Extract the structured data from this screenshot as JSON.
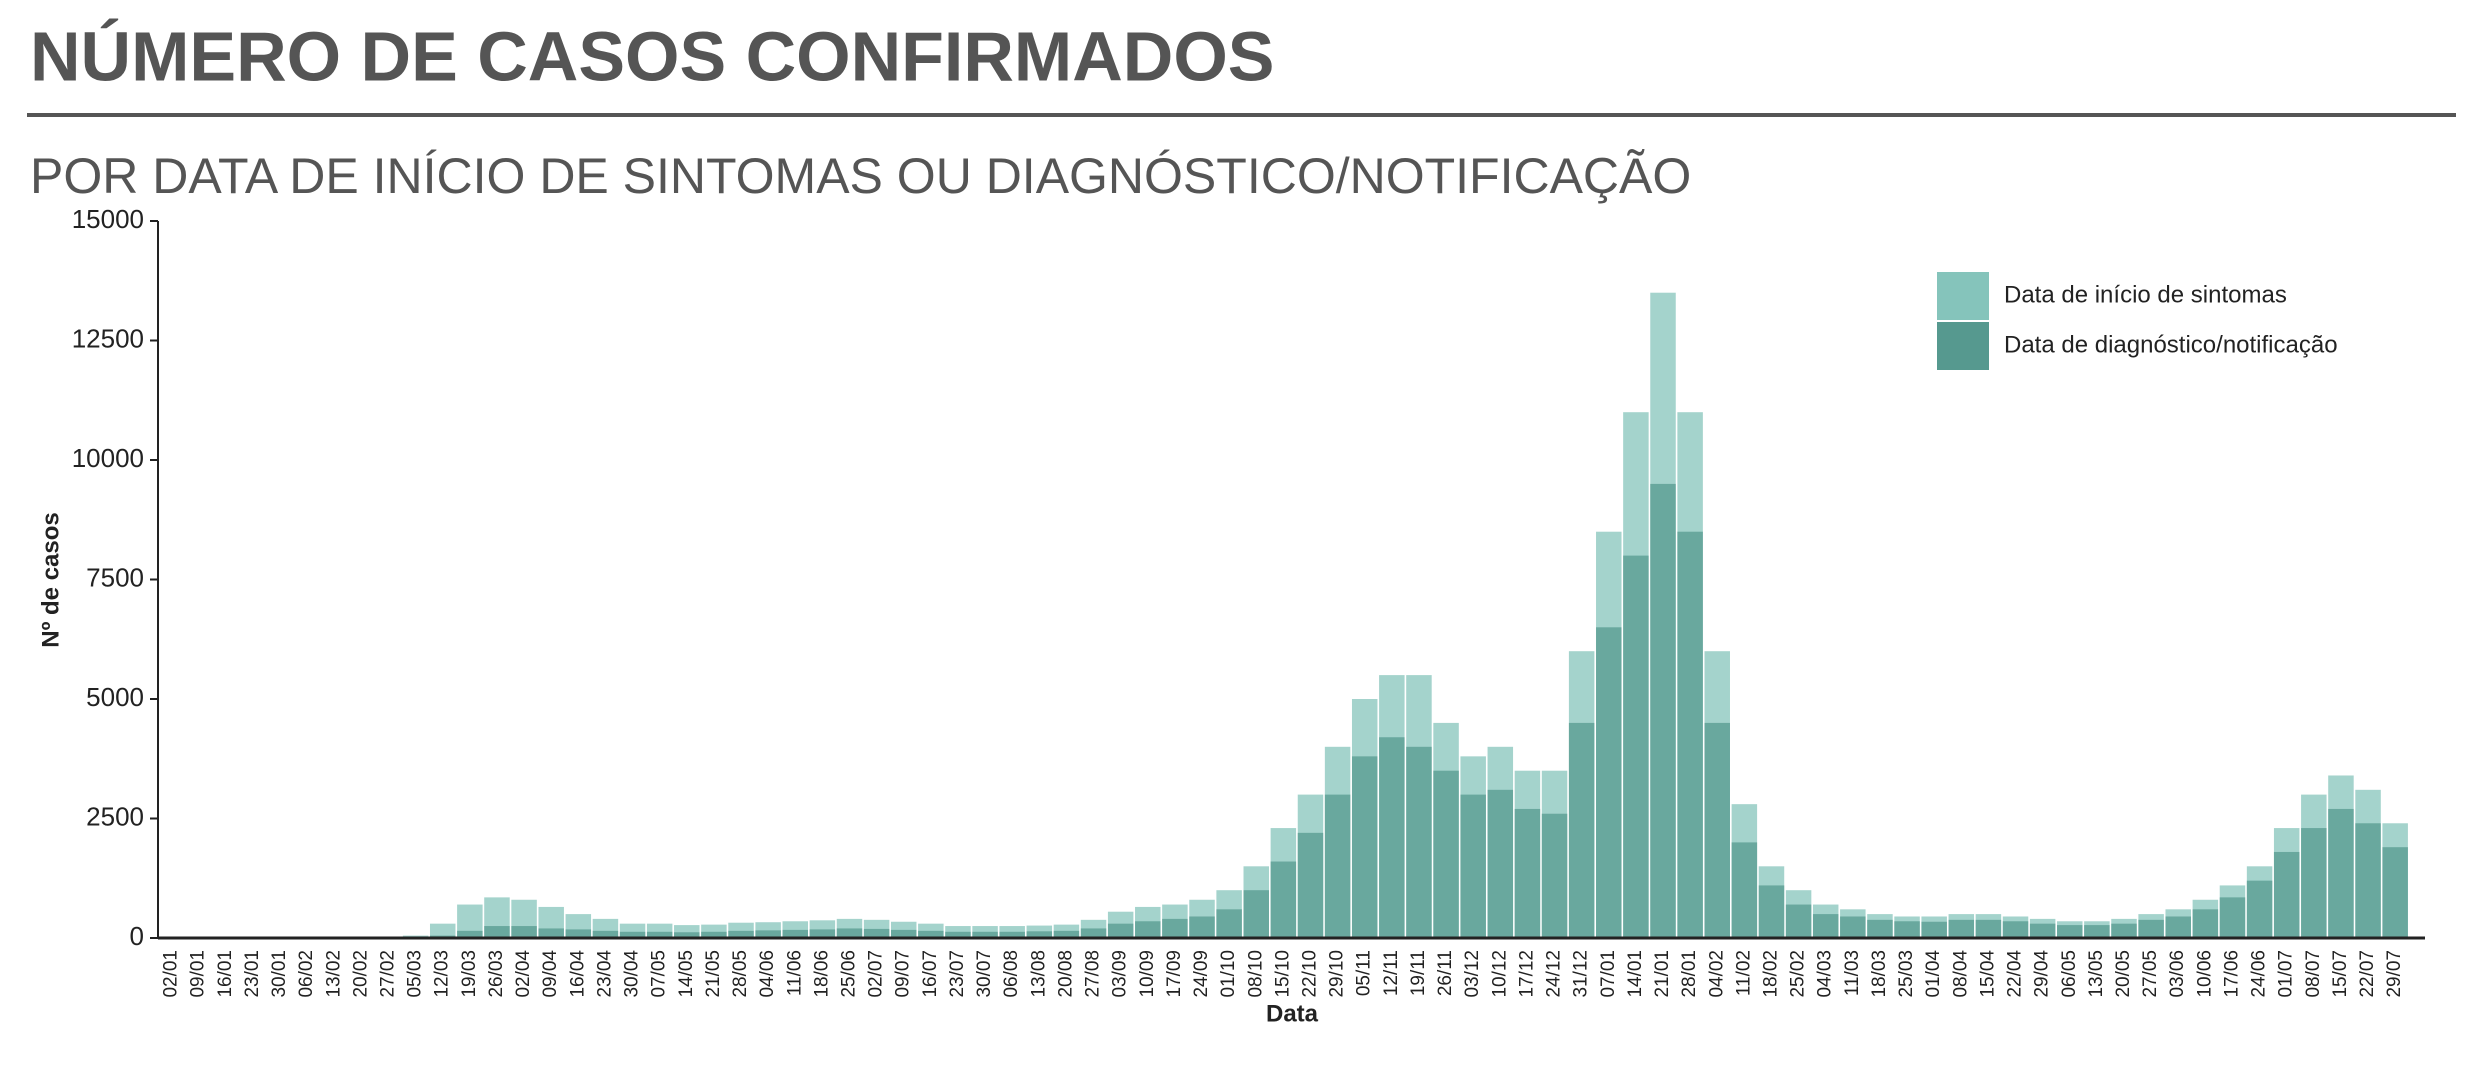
{
  "chart_data": {
    "type": "bar",
    "title": "NÚMERO DE CASOS CONFIRMADOS",
    "subtitle": "POR DATA DE INÍCIO DE SINTOMAS OU DIAGNÓSTICO/NOTIFICAÇÃO",
    "xlabel": "Data",
    "ylabel": "Nº de casos",
    "categories": [
      "02/01",
      "09/01",
      "16/01",
      "23/01",
      "30/01",
      "06/02",
      "13/02",
      "20/02",
      "27/02",
      "05/03",
      "12/03",
      "19/03",
      "26/03",
      "02/04",
      "09/04",
      "16/04",
      "23/04",
      "30/04",
      "07/05",
      "14/05",
      "21/05",
      "28/05",
      "04/06",
      "11/06",
      "18/06",
      "25/06",
      "02/07",
      "09/07",
      "16/07",
      "23/07",
      "30/07",
      "06/08",
      "13/08",
      "20/08",
      "27/08",
      "03/09",
      "10/09",
      "17/09",
      "24/09",
      "01/10",
      "08/10",
      "15/10",
      "22/10",
      "29/10",
      "05/11",
      "12/11",
      "19/11",
      "26/11",
      "03/12",
      "10/12",
      "17/12",
      "24/12",
      "31/12",
      "07/01",
      "14/01",
      "21/01",
      "28/01",
      "04/02",
      "11/02",
      "18/02",
      "25/02",
      "04/03",
      "11/03",
      "18/03",
      "25/03",
      "01/04",
      "08/04",
      "15/04",
      "22/04",
      "29/04",
      "06/05",
      "13/05",
      "20/05",
      "27/05",
      "03/06",
      "10/06",
      "17/06",
      "24/06",
      "01/07",
      "08/07",
      "15/07",
      "22/07",
      "29/07"
    ],
    "series": [
      {
        "name": "Data de início de sintomas",
        "color": "#85c4bb",
        "values": [
          0,
          0,
          0,
          0,
          0,
          0,
          0,
          0,
          0,
          50,
          300,
          700,
          850,
          800,
          650,
          500,
          400,
          300,
          300,
          270,
          280,
          320,
          330,
          350,
          370,
          400,
          380,
          340,
          300,
          250,
          250,
          250,
          260,
          280,
          380,
          550,
          650,
          700,
          800,
          1000,
          1500,
          2300,
          3000,
          4000,
          5000,
          5500,
          5500,
          4500,
          3800,
          4000,
          3500,
          3500,
          6000,
          8500,
          11000,
          13500,
          11000,
          6000,
          2800,
          1500,
          1000,
          700,
          600,
          500,
          450,
          450,
          500,
          500,
          450,
          400,
          350,
          350,
          400,
          500,
          600,
          800,
          1100,
          1500,
          2300,
          3000,
          3400,
          3100,
          2400
        ]
      },
      {
        "name": "Data de diagnóstico/notificação",
        "color": "#56998f",
        "values": [
          0,
          0,
          0,
          0,
          0,
          0,
          0,
          0,
          0,
          0,
          50,
          150,
          250,
          250,
          200,
          180,
          150,
          130,
          130,
          120,
          130,
          150,
          160,
          170,
          180,
          200,
          190,
          170,
          150,
          130,
          130,
          130,
          140,
          150,
          200,
          300,
          350,
          400,
          450,
          600,
          1000,
          1600,
          2200,
          3000,
          3800,
          4200,
          4000,
          3500,
          3000,
          3100,
          2700,
          2600,
          4500,
          6500,
          8000,
          9500,
          8500,
          4500,
          2000,
          1100,
          700,
          500,
          450,
          380,
          350,
          340,
          380,
          380,
          350,
          300,
          270,
          270,
          300,
          380,
          450,
          600,
          850,
          1200,
          1800,
          2300,
          2700,
          2400,
          1900
        ]
      }
    ],
    "ylim": [
      0,
      15000
    ],
    "yticks": [
      0,
      2500,
      5000,
      7500,
      10000,
      12500,
      15000
    ]
  }
}
